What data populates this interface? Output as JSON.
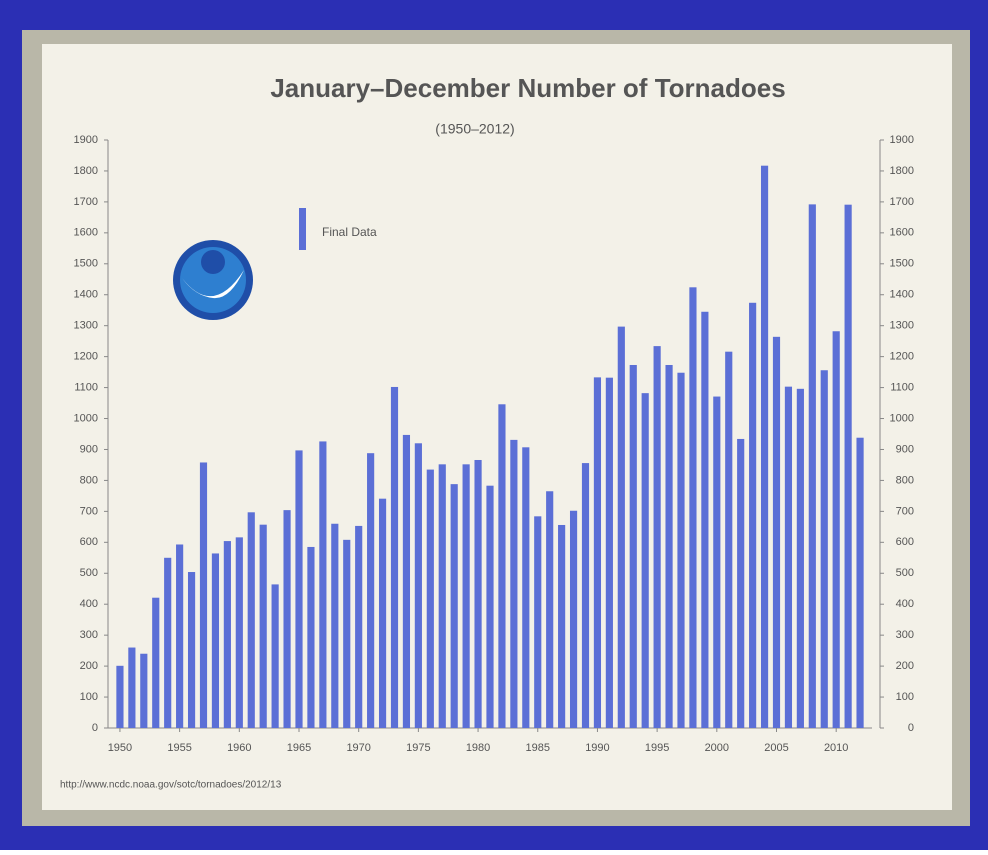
{
  "chart_data": {
    "type": "bar",
    "title": "January–December Number of Tornadoes",
    "subtitle": "(1950–2012)",
    "source": "http://www.ncdc.noaa.gov/sotc/tornadoes/2012/13",
    "x": [
      1950,
      1951,
      1952,
      1953,
      1954,
      1955,
      1956,
      1957,
      1958,
      1959,
      1960,
      1961,
      1962,
      1963,
      1964,
      1965,
      1966,
      1967,
      1968,
      1969,
      1970,
      1971,
      1972,
      1973,
      1974,
      1975,
      1976,
      1977,
      1978,
      1979,
      1980,
      1981,
      1982,
      1983,
      1984,
      1985,
      1986,
      1987,
      1988,
      1989,
      1990,
      1991,
      1992,
      1993,
      1994,
      1995,
      1996,
      1997,
      1998,
      1999,
      2000,
      2001,
      2002,
      2003,
      2004,
      2005,
      2006,
      2007,
      2008,
      2009,
      2010,
      2011,
      2012
    ],
    "series": [
      {
        "name": "Final Data",
        "color": "#5b6fd6",
        "values": [
          201,
          260,
          240,
          421,
          550,
          593,
          504,
          858,
          564,
          604,
          616,
          697,
          657,
          464,
          704,
          897,
          585,
          926,
          660,
          608,
          653,
          888,
          741,
          1102,
          947,
          920,
          835,
          852,
          788,
          852,
          866,
          783,
          1046,
          931,
          907,
          684,
          765,
          656,
          702,
          856,
          1133,
          1132,
          1297,
          1173,
          1082,
          1234,
          1173,
          1148,
          1424,
          1345,
          1071,
          1216,
          934,
          1374,
          1817,
          1264,
          1103,
          1096,
          1692,
          1156,
          1282,
          1691,
          938
        ]
      }
    ],
    "xlim": [
      1949,
      2013
    ],
    "xticks": [
      1950,
      1955,
      1960,
      1965,
      1970,
      1975,
      1980,
      1985,
      1990,
      1995,
      2000,
      2005,
      2010
    ],
    "ylim": [
      0,
      1900
    ],
    "yticks": [
      0,
      100,
      200,
      300,
      400,
      500,
      600,
      700,
      800,
      900,
      1000,
      1100,
      1200,
      1300,
      1400,
      1500,
      1600,
      1700,
      1800,
      1900
    ],
    "y2lim": [
      0,
      1900
    ],
    "y2ticks": [
      0,
      100,
      200,
      300,
      400,
      500,
      600,
      700,
      800,
      900,
      1000,
      1100,
      1200,
      1300,
      1400,
      1500,
      1600,
      1700,
      1800,
      1900
    ],
    "legend": "top-left"
  }
}
